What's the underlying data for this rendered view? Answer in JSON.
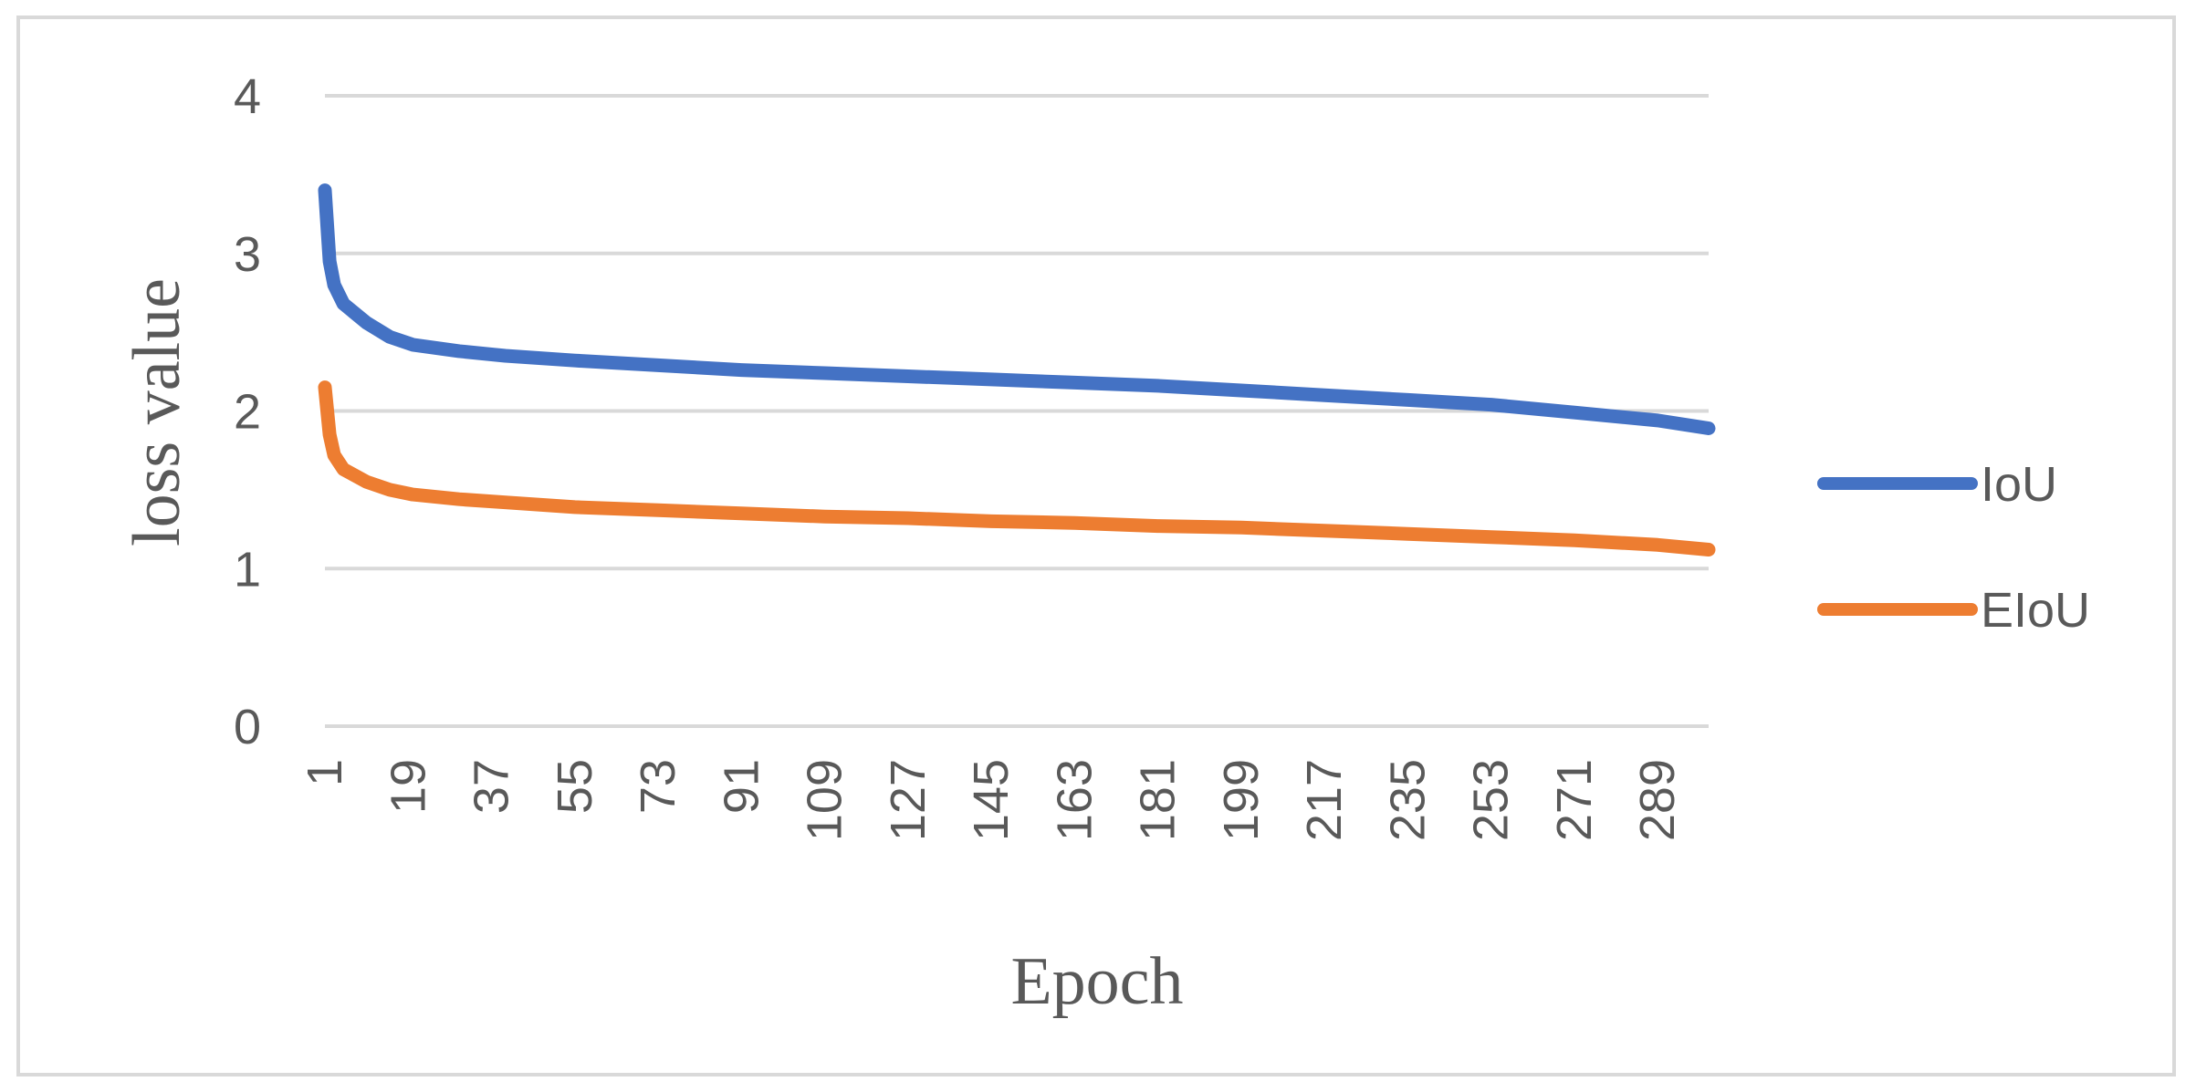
{
  "chart_data": {
    "type": "line",
    "title": "",
    "xlabel": "Epoch",
    "ylabel": "loss value",
    "ylim": [
      0,
      4
    ],
    "yticks": [
      0,
      1,
      2,
      3,
      4
    ],
    "xlim": [
      1,
      300
    ],
    "xticks": [
      1,
      19,
      37,
      55,
      73,
      91,
      109,
      127,
      145,
      163,
      181,
      199,
      217,
      235,
      253,
      271,
      289
    ],
    "grid": true,
    "legend_position": "right",
    "x": [
      1,
      2,
      3,
      5,
      10,
      15,
      20,
      30,
      40,
      55,
      73,
      91,
      109,
      127,
      145,
      163,
      181,
      199,
      217,
      235,
      253,
      271,
      289,
      300
    ],
    "series": [
      {
        "name": "IoU",
        "color": "#4472c4",
        "values": [
          3.4,
          2.95,
          2.8,
          2.68,
          2.56,
          2.47,
          2.42,
          2.38,
          2.35,
          2.32,
          2.29,
          2.26,
          2.24,
          2.22,
          2.2,
          2.18,
          2.16,
          2.13,
          2.1,
          2.07,
          2.04,
          1.99,
          1.94,
          1.89
        ]
      },
      {
        "name": "EIoU",
        "color": "#ed7d31",
        "values": [
          2.15,
          1.85,
          1.72,
          1.63,
          1.55,
          1.5,
          1.47,
          1.44,
          1.42,
          1.39,
          1.37,
          1.35,
          1.33,
          1.32,
          1.3,
          1.29,
          1.27,
          1.26,
          1.24,
          1.22,
          1.2,
          1.18,
          1.15,
          1.12
        ]
      }
    ]
  }
}
